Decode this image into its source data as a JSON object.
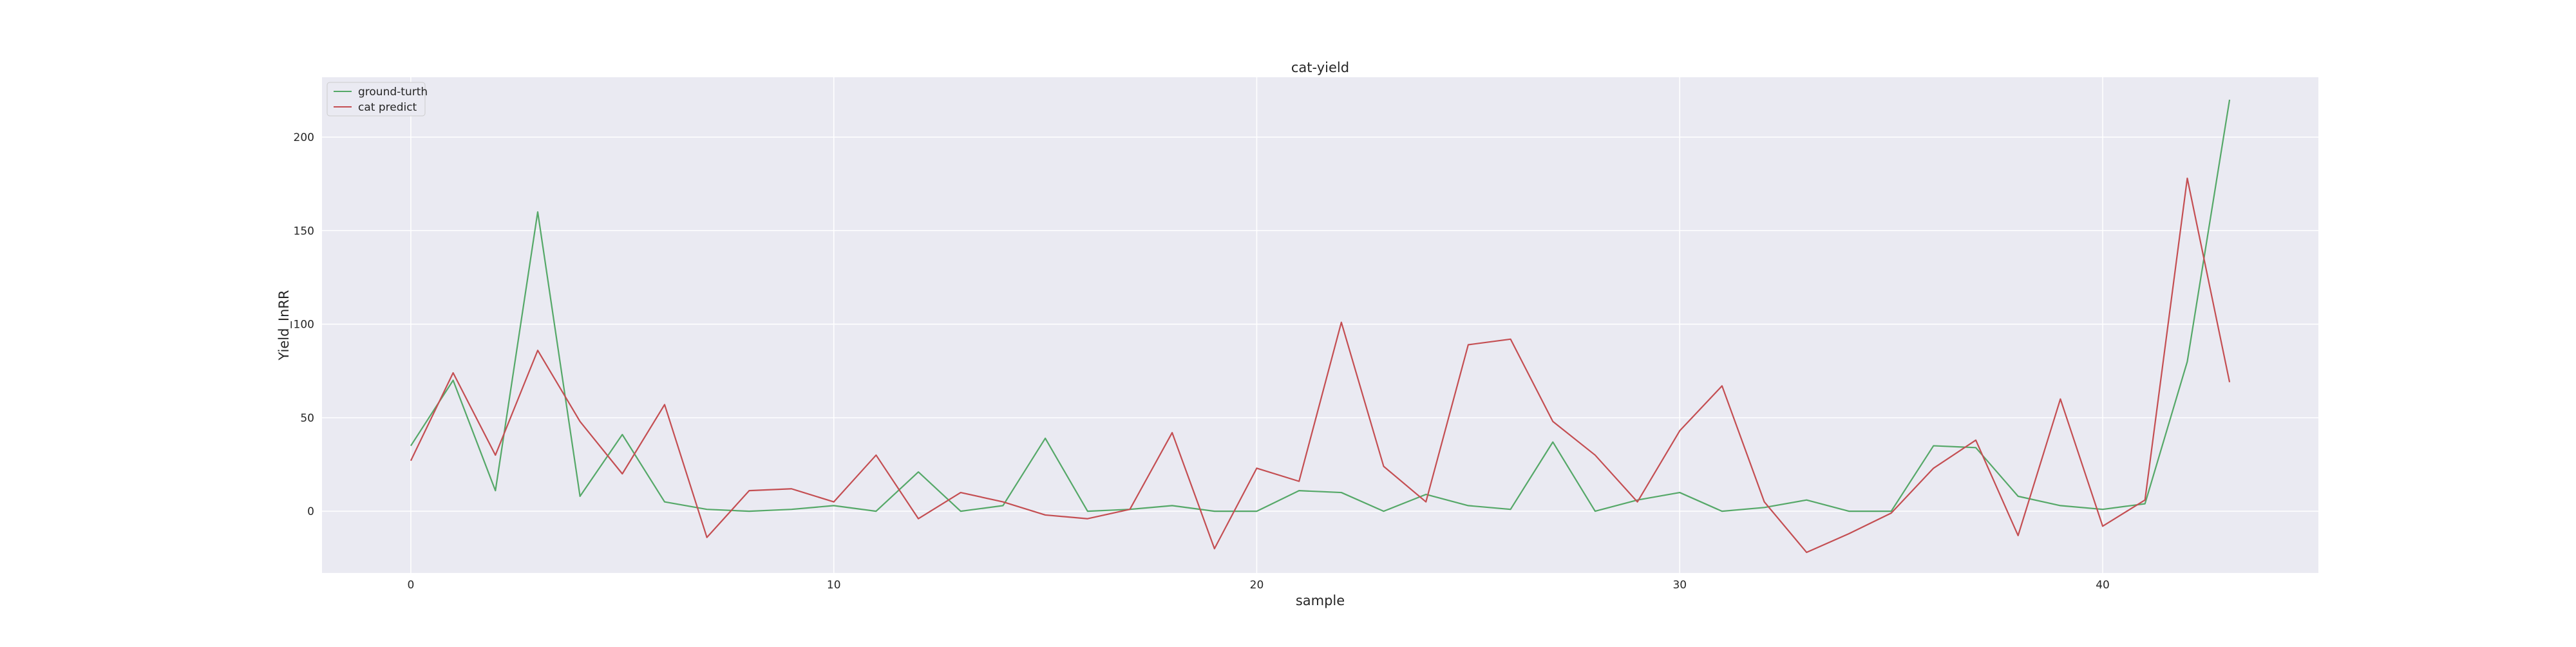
{
  "chart_data": {
    "type": "line",
    "title": "cat-yield",
    "xlabel": "sample",
    "ylabel": "Yield_InRR",
    "x": [
      0,
      1,
      2,
      3,
      4,
      5,
      6,
      7,
      8,
      9,
      10,
      11,
      12,
      13,
      14,
      15,
      16,
      17,
      18,
      19,
      20,
      21,
      22,
      23,
      24,
      25,
      26,
      27,
      28,
      29,
      30,
      31,
      32,
      33,
      34,
      35,
      36,
      37,
      38,
      39,
      40,
      41,
      42,
      43
    ],
    "xlim": [
      -2.1,
      45.1
    ],
    "ylim": [
      -33,
      232
    ],
    "x_ticks": [
      0,
      10,
      20,
      30,
      40
    ],
    "y_ticks": [
      0,
      50,
      100,
      150,
      200
    ],
    "grid": true,
    "legend_position": "top-left",
    "series": [
      {
        "name": "ground-turth",
        "color": "#55a868",
        "values": [
          35,
          70,
          11,
          160,
          8,
          41,
          5,
          1,
          0,
          1,
          3,
          0,
          21,
          0,
          3,
          39,
          0,
          1,
          3,
          0,
          0,
          11,
          10,
          0,
          9,
          3,
          1,
          37,
          0,
          6,
          10,
          0,
          2,
          6,
          0,
          0,
          35,
          34,
          8,
          3,
          1,
          4,
          80,
          220
        ]
      },
      {
        "name": "cat predict",
        "color": "#c44e52",
        "values": [
          27,
          74,
          30,
          86,
          48,
          20,
          57,
          -14,
          11,
          12,
          5,
          30,
          -4,
          10,
          5,
          -2,
          -4,
          1,
          42,
          -20,
          23,
          16,
          101,
          24,
          5,
          89,
          92,
          48,
          30,
          5,
          43,
          67,
          5,
          -22,
          -12,
          -1,
          23,
          38,
          -13,
          60,
          -8,
          6,
          178,
          69
        ]
      }
    ]
  }
}
